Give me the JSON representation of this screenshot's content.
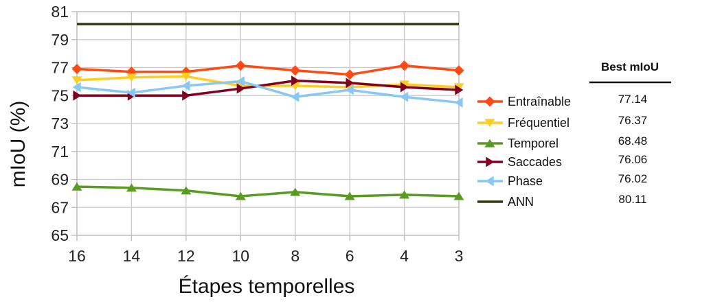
{
  "chart_data": {
    "type": "line",
    "xlabel": "Étapes temporelles",
    "ylabel": "mIoU (%)",
    "categories": [
      "16",
      "14",
      "12",
      "10",
      "8",
      "6",
      "4",
      "3"
    ],
    "ylim": [
      65,
      81
    ],
    "yticks": [
      65,
      67,
      69,
      71,
      73,
      75,
      77,
      79,
      81
    ],
    "grid": true,
    "legend_position": "right",
    "best_header": "Best mIoU",
    "series": [
      {
        "name": "Entraînable",
        "color": "#ff4a14",
        "marker": "diamond",
        "values": [
          76.9,
          76.7,
          76.7,
          77.14,
          76.8,
          76.5,
          77.14,
          76.8
        ],
        "best": "77.14"
      },
      {
        "name": "Fréquentiel",
        "color": "#ffcc22",
        "marker": "triangle-down",
        "values": [
          76.1,
          76.3,
          76.37,
          75.7,
          75.7,
          75.6,
          75.8,
          75.6
        ],
        "best": "76.37"
      },
      {
        "name": "Temporel",
        "color": "#5a9c22",
        "marker": "triangle-up",
        "values": [
          68.48,
          68.4,
          68.2,
          67.8,
          68.1,
          67.8,
          67.9,
          67.8
        ],
        "best": "68.48"
      },
      {
        "name": "Saccades",
        "color": "#800020",
        "marker": "triangle-right",
        "values": [
          75.0,
          75.0,
          75.0,
          75.5,
          76.06,
          75.9,
          75.6,
          75.4
        ],
        "best": "76.06"
      },
      {
        "name": "Phase",
        "color": "#88c8f4",
        "marker": "triangle-left",
        "values": [
          75.6,
          75.2,
          75.7,
          76.02,
          74.9,
          75.4,
          74.9,
          74.5
        ],
        "best": "76.02"
      },
      {
        "name": "ANN",
        "color": "#2e3a0c",
        "marker": "none",
        "values": [
          80.11,
          80.11,
          80.11,
          80.11,
          80.11,
          80.11,
          80.11,
          80.11
        ],
        "best": "80.11"
      }
    ]
  }
}
